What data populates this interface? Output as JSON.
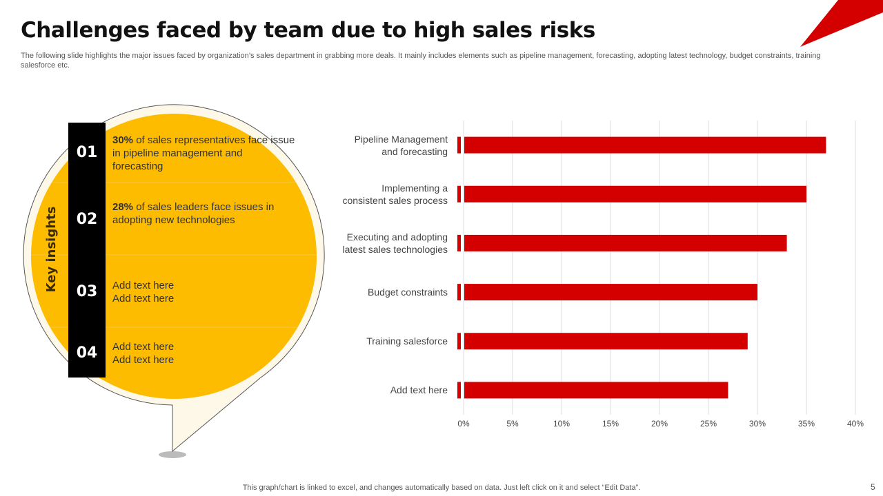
{
  "title": "Challenges faced by team due to high sales risks",
  "subtitle": "The following slide highlights the major issues faced by organization’s sales department in grabbing more deals. It mainly includes elements such as pipeline management, forecasting, adopting latest technology, budget constraints, training salesforce etc.",
  "insights": {
    "heading": "Key insights",
    "items": [
      {
        "number": "01",
        "highlight": "30%",
        "text": "of sales representatives face issue in pipeline management and forecasting"
      },
      {
        "number": "02",
        "highlight": "28%",
        "text": "of sales leaders face issues in adopting new technologies"
      },
      {
        "number": "03",
        "text": "Add text here\nAdd text here"
      },
      {
        "number": "04",
        "text": "Add text here\nAdd text here"
      }
    ]
  },
  "chart_data": {
    "type": "barh",
    "categories": [
      "Pipeline Management\nand forecasting",
      "Implementing a\nconsistent sales process",
      "Executing and adopting\nlatest sales technologies",
      "Budget constraints",
      "Training salesforce",
      "Add text here"
    ],
    "values": [
      37,
      35,
      33,
      30,
      29,
      27
    ],
    "color": "#d40000",
    "xlim": [
      0,
      40
    ],
    "xticks": [
      {
        "value": 0,
        "label": "0%"
      },
      {
        "value": 5,
        "label": "5%"
      },
      {
        "value": 10,
        "label": "10%"
      },
      {
        "value": 15,
        "label": "15%"
      },
      {
        "value": 20,
        "label": "20%"
      },
      {
        "value": 25,
        "label": "25%"
      },
      {
        "value": 30,
        "label": "30%"
      },
      {
        "value": 35,
        "label": "35%"
      },
      {
        "value": 40,
        "label": "40%"
      }
    ],
    "grid": true
  },
  "footer": "This graph/chart is linked to excel,  and changes automatically based on data. Just left click on it and select “Edit Data”.",
  "page_number": "5"
}
